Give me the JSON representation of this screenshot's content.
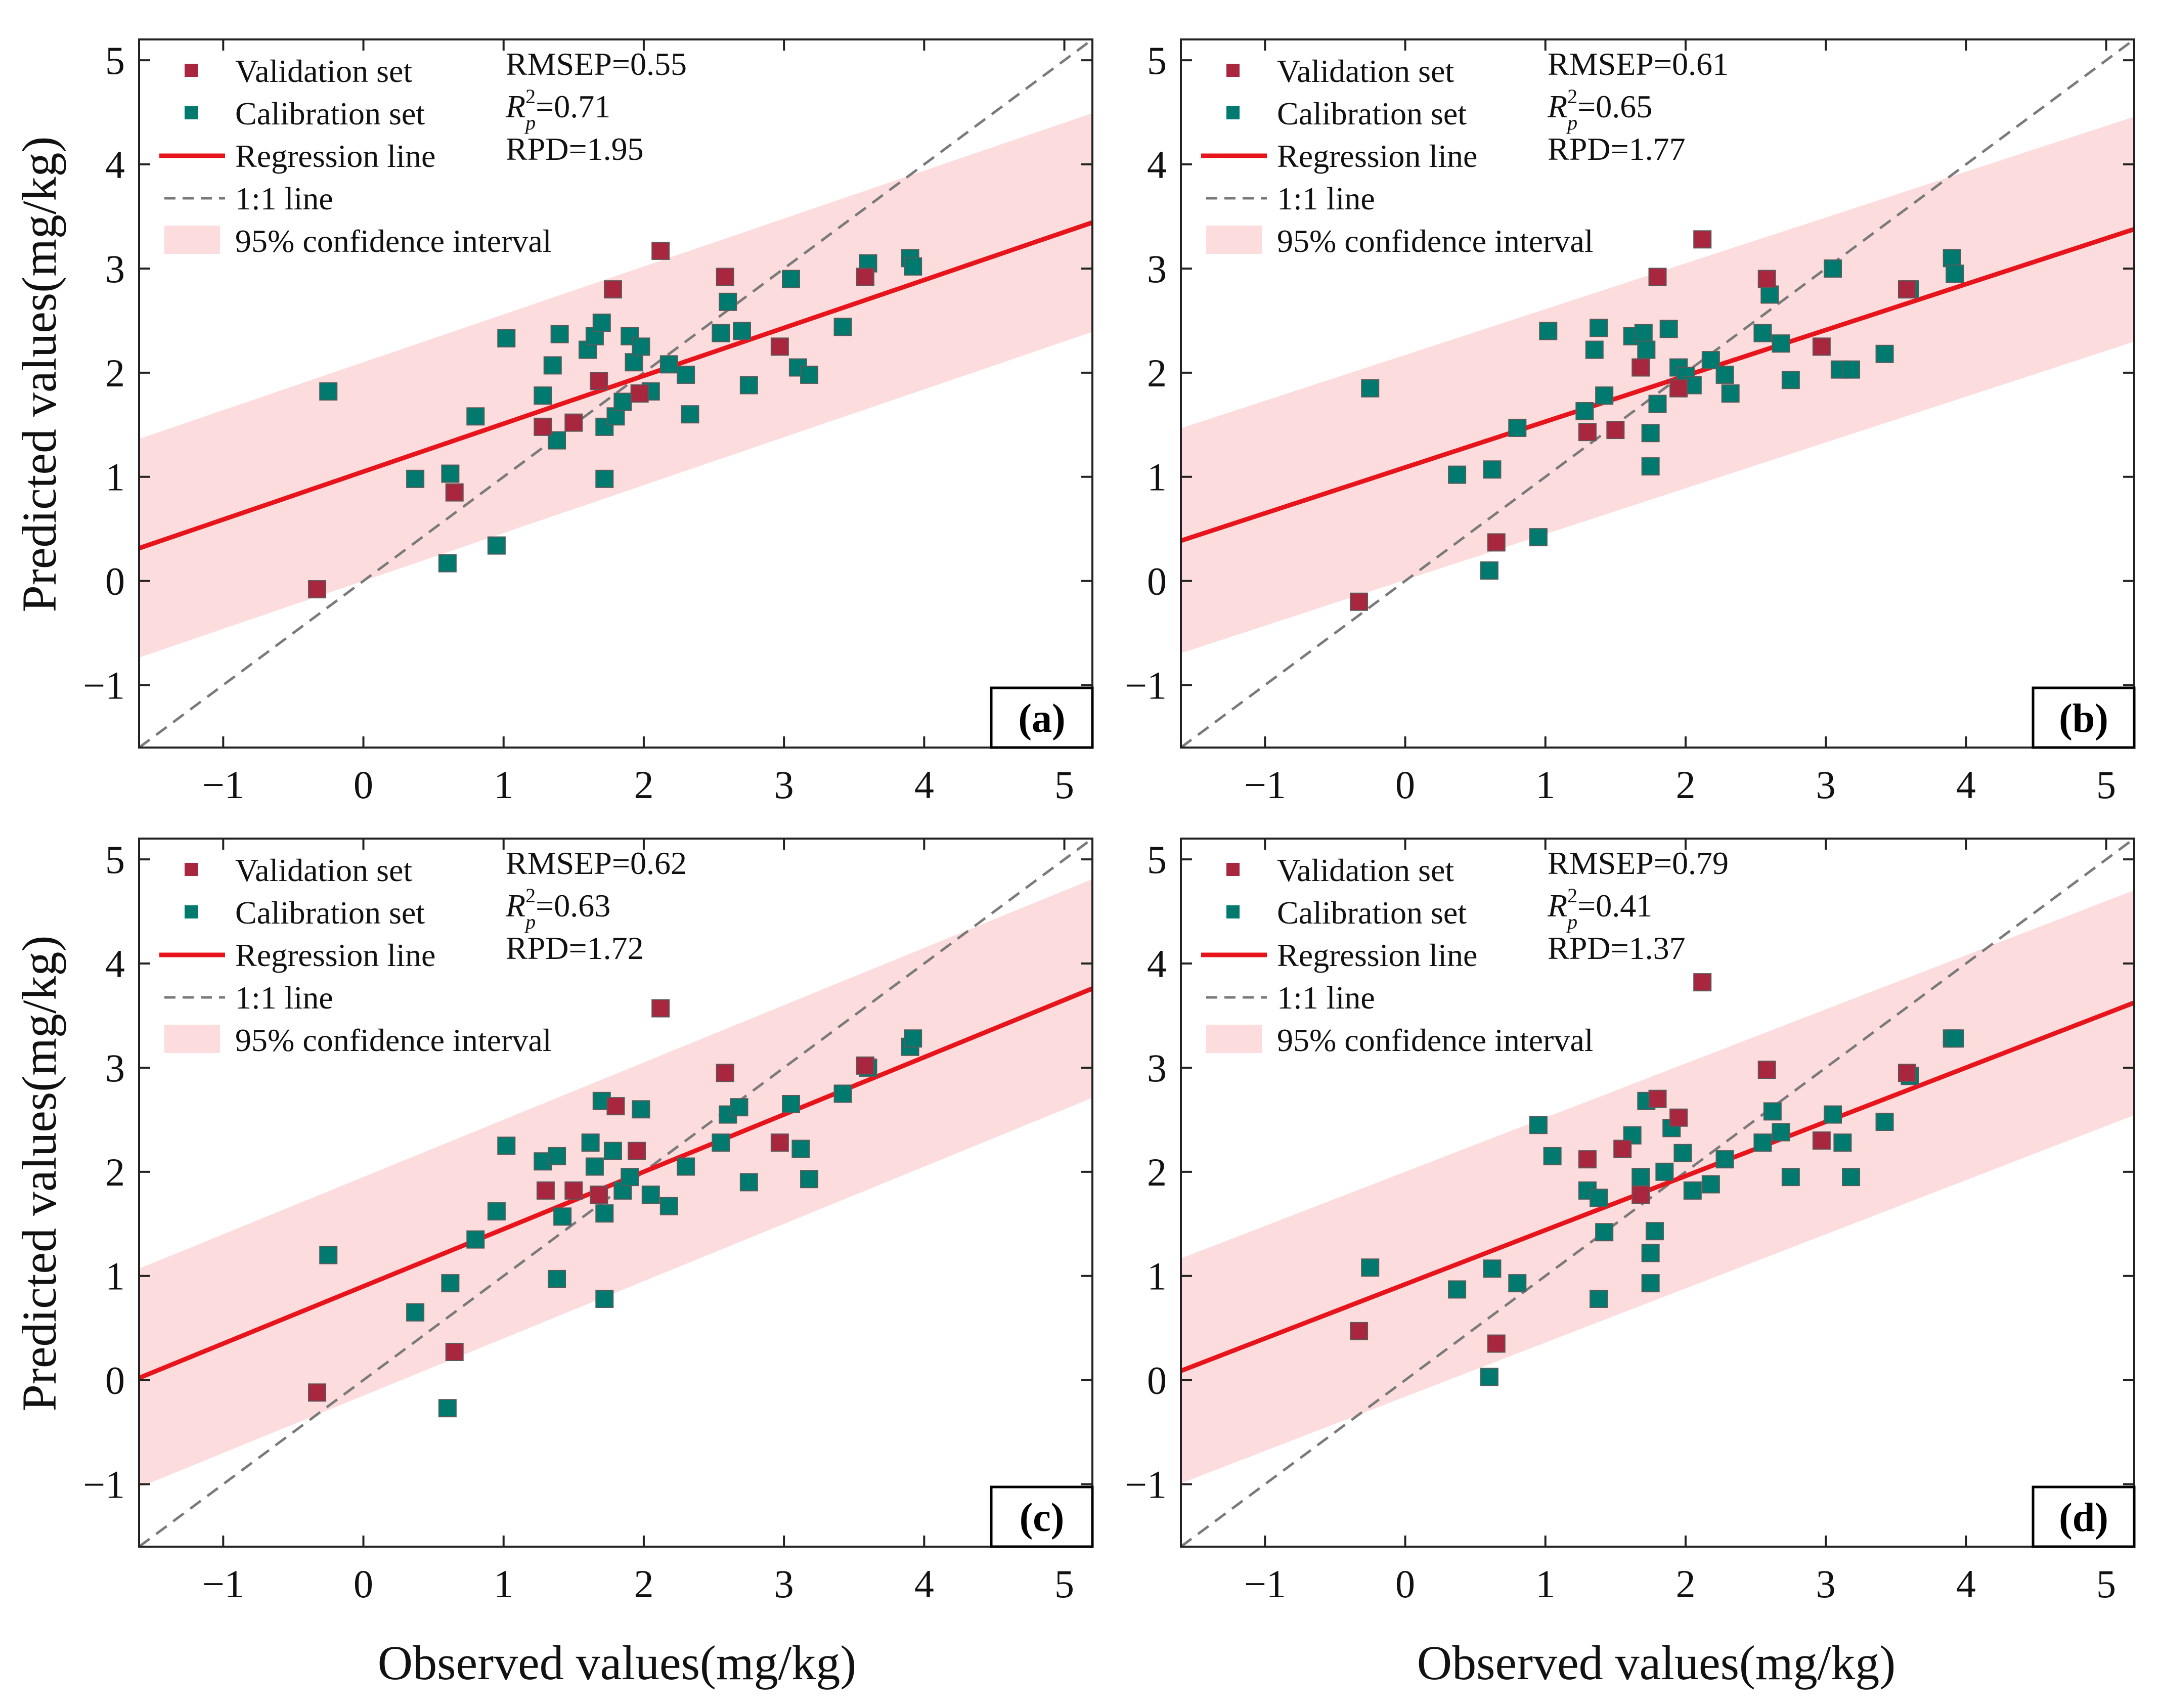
{
  "colors": {
    "validation": "#A8263E",
    "calibration": "#007A6E",
    "regression": "#E8141C",
    "identity": "#7A7A7A",
    "confidence": "#FCDCDC"
  },
  "legend": {
    "validation": "Validation set",
    "calibration": "Calibration set",
    "regression": "Regression line",
    "identity": "1:1 line",
    "confidence": "95% confidence interval"
  },
  "axes": {
    "xlabel": "Observed values(mg/kg)",
    "ylabel": "Predicted values(mg/kg)",
    "xticks": [
      "-1",
      "0",
      "1",
      "2",
      "3",
      "4",
      "5"
    ],
    "yticks": [
      "5",
      "4",
      "3",
      "2",
      "1",
      "0",
      "-1"
    ]
  },
  "chart_data": [
    {
      "type": "scatter",
      "label": "(a)",
      "stats": {
        "rmsep": "RMSEP=0.55",
        "r2_label": "R",
        "r2_value": "=0.71",
        "rpd": "RPD=1.95"
      },
      "xlim": [
        -1.6,
        5.2
      ],
      "ylim": [
        -1.6,
        5.2
      ],
      "regression": {
        "slope": 0.46,
        "intercept": 1.05
      },
      "ci_halfwidth": 1.05,
      "validation": [
        [
          -0.33,
          -0.08
        ],
        [
          0.65,
          0.85
        ],
        [
          1.28,
          1.48
        ],
        [
          1.5,
          1.52
        ],
        [
          1.68,
          1.92
        ],
        [
          1.78,
          2.8
        ],
        [
          1.97,
          1.8
        ],
        [
          2.12,
          3.17
        ],
        [
          2.58,
          2.92
        ],
        [
          2.97,
          2.25
        ],
        [
          3.58,
          2.92
        ]
      ],
      "calibration": [
        [
          -0.25,
          1.82
        ],
        [
          0.37,
          0.98
        ],
        [
          0.62,
          1.03
        ],
        [
          0.6,
          0.17
        ],
        [
          0.95,
          0.34
        ],
        [
          0.8,
          1.58
        ],
        [
          1.02,
          2.33
        ],
        [
          1.28,
          1.78
        ],
        [
          1.35,
          2.07
        ],
        [
          1.38,
          1.35
        ],
        [
          1.4,
          2.37
        ],
        [
          1.6,
          2.22
        ],
        [
          1.65,
          2.35
        ],
        [
          1.7,
          2.48
        ],
        [
          1.72,
          1.48
        ],
        [
          1.72,
          0.98
        ],
        [
          1.8,
          1.58
        ],
        [
          1.85,
          1.72
        ],
        [
          1.9,
          2.35
        ],
        [
          1.93,
          2.1
        ],
        [
          1.98,
          2.25
        ],
        [
          2.05,
          1.82
        ],
        [
          2.18,
          2.08
        ],
        [
          2.3,
          1.98
        ],
        [
          2.33,
          1.6
        ],
        [
          2.55,
          2.38
        ],
        [
          2.6,
          2.68
        ],
        [
          2.7,
          2.4
        ],
        [
          2.75,
          1.88
        ],
        [
          3.05,
          2.9
        ],
        [
          3.1,
          2.05
        ],
        [
          3.18,
          1.98
        ],
        [
          3.42,
          2.44
        ],
        [
          3.6,
          3.05
        ],
        [
          3.9,
          3.1
        ],
        [
          3.92,
          3.02
        ]
      ]
    },
    {
      "type": "scatter",
      "label": "(b)",
      "stats": {
        "rmsep": "RMSEP=0.61",
        "r2_label": "R",
        "r2_value": "=0.65",
        "rpd": "RPD=1.77"
      },
      "xlim": [
        -1.6,
        5.2
      ],
      "ylim": [
        -1.6,
        5.2
      ],
      "regression": {
        "slope": 0.44,
        "intercept": 1.09
      },
      "ci_halfwidth": 1.08,
      "validation": [
        [
          -0.33,
          -0.2
        ],
        [
          0.65,
          0.37
        ],
        [
          1.3,
          1.43
        ],
        [
          1.5,
          1.45
        ],
        [
          1.68,
          2.05
        ],
        [
          1.8,
          2.92
        ],
        [
          1.95,
          1.85
        ],
        [
          2.12,
          3.28
        ],
        [
          2.58,
          2.9
        ],
        [
          2.97,
          2.25
        ],
        [
          3.58,
          2.8
        ]
      ],
      "calibration": [
        [
          -0.25,
          1.85
        ],
        [
          0.37,
          1.02
        ],
        [
          0.62,
          1.07
        ],
        [
          0.6,
          0.1
        ],
        [
          0.95,
          0.42
        ],
        [
          0.8,
          1.47
        ],
        [
          1.02,
          2.4
        ],
        [
          1.28,
          1.63
        ],
        [
          1.35,
          2.22
        ],
        [
          1.38,
          2.43
        ],
        [
          1.42,
          1.78
        ],
        [
          1.62,
          2.35
        ],
        [
          1.7,
          2.38
        ],
        [
          1.72,
          2.22
        ],
        [
          1.75,
          1.42
        ],
        [
          1.75,
          1.1
        ],
        [
          1.8,
          1.7
        ],
        [
          1.88,
          2.42
        ],
        [
          1.95,
          2.05
        ],
        [
          2.0,
          1.97
        ],
        [
          2.05,
          1.88
        ],
        [
          2.18,
          2.12
        ],
        [
          2.28,
          1.98
        ],
        [
          2.32,
          1.8
        ],
        [
          2.55,
          2.38
        ],
        [
          2.6,
          2.75
        ],
        [
          2.68,
          2.28
        ],
        [
          2.75,
          1.93
        ],
        [
          3.05,
          3.0
        ],
        [
          3.1,
          2.03
        ],
        [
          3.18,
          2.03
        ],
        [
          3.42,
          2.18
        ],
        [
          3.6,
          2.8
        ],
        [
          3.9,
          3.1
        ],
        [
          3.92,
          2.95
        ]
      ]
    },
    {
      "type": "scatter",
      "label": "(c)",
      "stats": {
        "rmsep": "RMSEP=0.62",
        "r2_label": "R",
        "r2_value": "=0.63",
        "rpd": "RPD=1.72"
      },
      "xlim": [
        -1.6,
        5.2
      ],
      "ylim": [
        -1.6,
        5.2
      ],
      "regression": {
        "slope": 0.55,
        "intercept": 0.9
      },
      "ci_halfwidth": 1.05,
      "validation": [
        [
          -0.33,
          -0.12
        ],
        [
          0.65,
          0.27
        ],
        [
          1.3,
          1.82
        ],
        [
          1.5,
          1.82
        ],
        [
          1.68,
          1.78
        ],
        [
          1.8,
          2.63
        ],
        [
          1.95,
          2.2
        ],
        [
          2.12,
          3.57
        ],
        [
          2.58,
          2.95
        ],
        [
          2.97,
          2.28
        ],
        [
          3.58,
          3.02
        ]
      ],
      "calibration": [
        [
          -0.25,
          1.2
        ],
        [
          0.37,
          0.65
        ],
        [
          0.62,
          0.93
        ],
        [
          0.6,
          -0.27
        ],
        [
          0.95,
          1.62
        ],
        [
          0.8,
          1.35
        ],
        [
          1.02,
          2.25
        ],
        [
          1.28,
          2.1
        ],
        [
          1.38,
          0.97
        ],
        [
          1.38,
          2.15
        ],
        [
          1.42,
          1.57
        ],
        [
          1.62,
          2.28
        ],
        [
          1.65,
          2.05
        ],
        [
          1.7,
          2.68
        ],
        [
          1.72,
          1.6
        ],
        [
          1.72,
          0.78
        ],
        [
          1.78,
          2.2
        ],
        [
          1.85,
          1.82
        ],
        [
          1.9,
          1.95
        ],
        [
          1.98,
          2.6
        ],
        [
          2.05,
          1.78
        ],
        [
          2.18,
          1.67
        ],
        [
          2.3,
          2.05
        ],
        [
          2.55,
          2.28
        ],
        [
          2.6,
          2.55
        ],
        [
          2.68,
          2.62
        ],
        [
          2.75,
          1.9
        ],
        [
          3.05,
          2.65
        ],
        [
          3.12,
          2.22
        ],
        [
          3.18,
          1.93
        ],
        [
          3.42,
          2.75
        ],
        [
          3.6,
          3.0
        ],
        [
          3.9,
          3.2
        ],
        [
          3.92,
          3.28
        ]
      ]
    },
    {
      "type": "scatter",
      "label": "(d)",
      "stats": {
        "rmsep": "RMSEP=0.79",
        "r2_label": "R",
        "r2_value": "=0.41",
        "rpd": "RPD=1.37"
      },
      "xlim": [
        -1.6,
        5.2
      ],
      "ylim": [
        -1.6,
        5.2
      ],
      "regression": {
        "slope": 0.52,
        "intercept": 0.92
      },
      "ci_halfwidth": 1.08,
      "validation": [
        [
          -0.33,
          0.47
        ],
        [
          0.65,
          0.35
        ],
        [
          1.3,
          2.12
        ],
        [
          1.55,
          2.22
        ],
        [
          1.68,
          1.78
        ],
        [
          1.8,
          2.7
        ],
        [
          1.95,
          2.52
        ],
        [
          2.12,
          3.82
        ],
        [
          2.58,
          2.98
        ],
        [
          2.97,
          2.3
        ],
        [
          3.58,
          2.95
        ]
      ],
      "calibration": [
        [
          -0.25,
          1.08
        ],
        [
          0.37,
          0.87
        ],
        [
          0.62,
          1.07
        ],
        [
          0.6,
          0.03
        ],
        [
          0.95,
          2.45
        ],
        [
          0.8,
          0.93
        ],
        [
          1.05,
          2.15
        ],
        [
          1.3,
          1.82
        ],
        [
          1.38,
          0.78
        ],
        [
          1.38,
          1.75
        ],
        [
          1.42,
          1.42
        ],
        [
          1.62,
          2.35
        ],
        [
          1.68,
          1.95
        ],
        [
          1.72,
          2.68
        ],
        [
          1.75,
          1.22
        ],
        [
          1.75,
          0.93
        ],
        [
          1.78,
          1.43
        ],
        [
          1.85,
          2.0
        ],
        [
          1.9,
          2.42
        ],
        [
          1.98,
          2.18
        ],
        [
          2.05,
          1.82
        ],
        [
          2.18,
          1.88
        ],
        [
          2.28,
          2.12
        ],
        [
          2.55,
          2.28
        ],
        [
          2.62,
          2.58
        ],
        [
          2.68,
          2.38
        ],
        [
          2.75,
          1.95
        ],
        [
          3.05,
          2.55
        ],
        [
          3.12,
          2.28
        ],
        [
          3.18,
          1.95
        ],
        [
          3.42,
          2.48
        ],
        [
          3.6,
          2.92
        ],
        [
          3.9,
          3.28
        ],
        [
          3.92,
          3.28
        ]
      ]
    }
  ]
}
